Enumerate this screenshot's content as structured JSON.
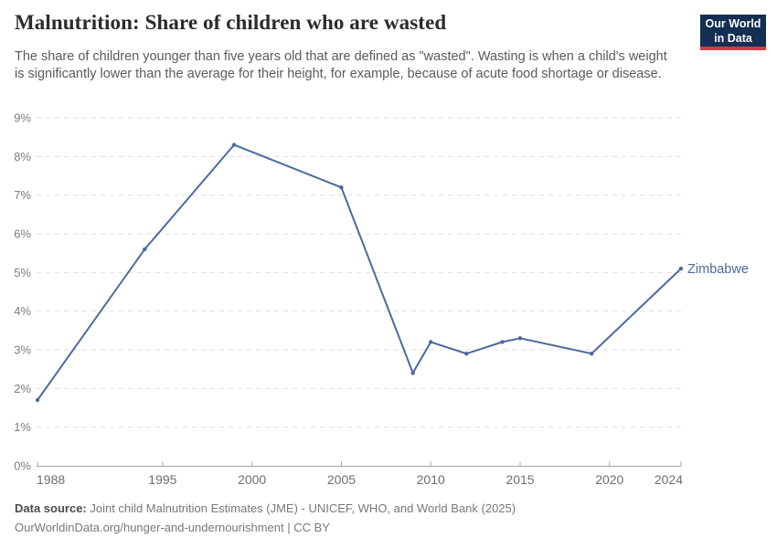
{
  "header": {
    "title": "Malnutrition: Share of children who are wasted",
    "subtitle": "The share of children younger than five years old that are defined as \"wasted\". Wasting is when a child's weight is significantly lower than the average for their height, for example, because of acute food shortage or disease.",
    "logo": {
      "line1": "Our World",
      "line2": "in Data",
      "bg_color": "#132f54",
      "accent_color": "#d73a45"
    }
  },
  "chart_data": {
    "type": "line",
    "title": "Malnutrition: Share of children who are wasted",
    "xlabel": "",
    "ylabel": "",
    "xlim": [
      1988,
      2024
    ],
    "ylim": [
      0,
      9
    ],
    "grid": "horizontal-dashed",
    "legend_position": "end-of-line",
    "x_ticks": [
      1988,
      1995,
      2000,
      2005,
      2010,
      2015,
      2020,
      2024
    ],
    "y_ticks": [
      0,
      1,
      2,
      3,
      4,
      5,
      6,
      7,
      8,
      9
    ],
    "y_tick_suffix": "%",
    "series": [
      {
        "name": "Zimbabwe",
        "color": "#4c6a9c",
        "points": [
          [
            1988,
            1.7
          ],
          [
            1994,
            5.6
          ],
          [
            1999,
            8.3
          ],
          [
            2005,
            7.2
          ],
          [
            2009,
            2.4
          ],
          [
            2010,
            3.2
          ],
          [
            2012,
            2.9
          ],
          [
            2014,
            3.2
          ],
          [
            2015,
            3.3
          ],
          [
            2019,
            2.9
          ],
          [
            2024,
            5.1
          ]
        ]
      }
    ],
    "colors": {
      "gridline": "#dedede",
      "axis": "#a3a3a3",
      "tick_label": "#6e6e6e",
      "y_tick_label": "#7d7d7d"
    }
  },
  "footer": {
    "source_label": "Data source:",
    "source_text": " Joint child Malnutrition Estimates (JME) - UNICEF, WHO, and World Bank (2025)",
    "link_text": "OurWorldinData.org/hunger-and-undernourishment | CC BY"
  }
}
